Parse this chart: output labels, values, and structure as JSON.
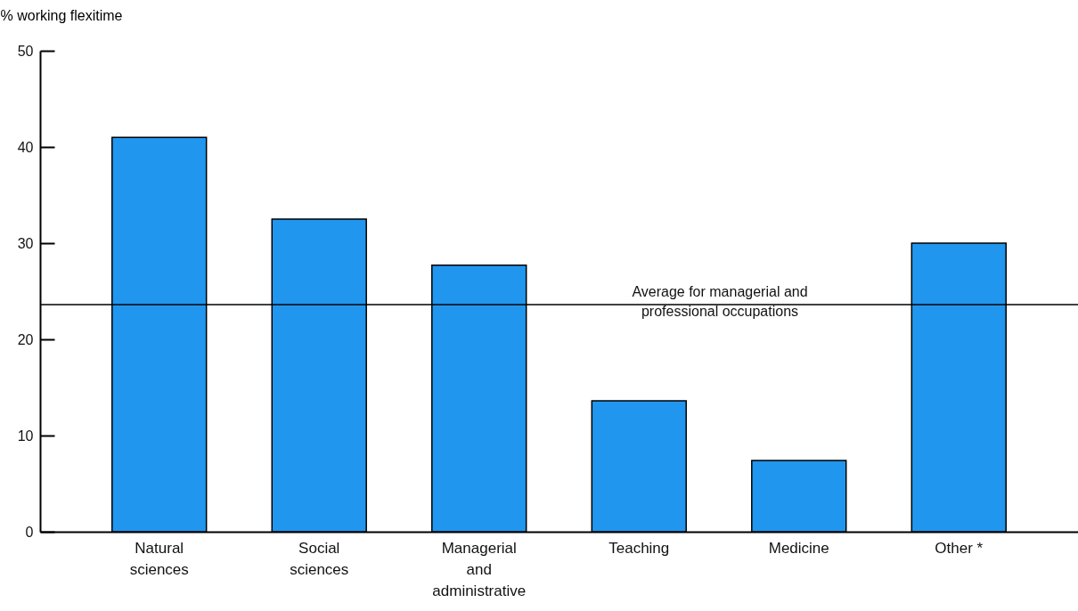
{
  "chart_data": {
    "type": "bar",
    "ylabel": "% working flexitime",
    "categories": [
      "Natural sciences",
      "Social sciences",
      "Managerial and administrative",
      "Teaching",
      "Medicine",
      "Other *"
    ],
    "values": [
      41,
      32.5,
      27.7,
      13.6,
      7.4,
      30
    ],
    "color": "#2196ee",
    "ylim": [
      0,
      50
    ],
    "yticks": [
      0,
      10,
      20,
      30,
      40,
      50
    ],
    "ref_lines": [
      {
        "axis": "y",
        "value": 23.6,
        "label": "Average for managerial and professional occupations"
      }
    ]
  }
}
